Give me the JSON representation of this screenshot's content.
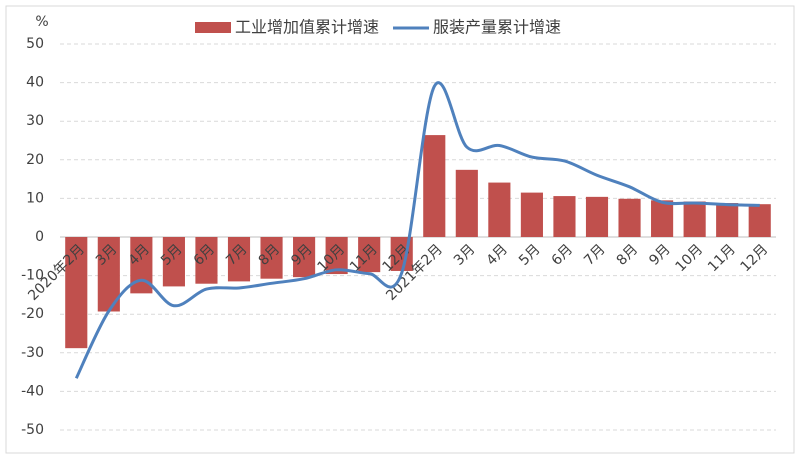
{
  "chart_data": {
    "type": "bar-line",
    "unit": "%",
    "categories": [
      "2020年2月",
      "3月",
      "4月",
      "5月",
      "6月",
      "7月",
      "8月",
      "9月",
      "10月",
      "11月",
      "12月",
      "2021年2月",
      "3月",
      "4月",
      "5月",
      "6月",
      "7月",
      "8月",
      "9月",
      "10月",
      "11月",
      "12月"
    ],
    "series": [
      {
        "name": "工业增加值累计增速",
        "type": "bar",
        "color": "#c0504d",
        "values": [
          -28.8,
          -19.3,
          -14.6,
          -12.8,
          -12.1,
          -11.5,
          -10.8,
          -10.4,
          -9.6,
          -9.1,
          -8.8,
          26.4,
          17.4,
          14.1,
          11.5,
          10.6,
          10.4,
          9.9,
          9.5,
          9.2,
          8.8,
          8.5
        ]
      },
      {
        "name": "服装产量累计增速",
        "type": "line",
        "color": "#4f81bd",
        "values": [
          -36.6,
          -19.2,
          -11.2,
          -17.8,
          -13.5,
          -13.2,
          -12.0,
          -10.8,
          -8.5,
          -9.5,
          -9.3,
          39.0,
          23.3,
          23.7,
          20.7,
          19.7,
          16.0,
          13.0,
          9.0,
          8.8,
          8.4,
          8.2
        ]
      }
    ],
    "ylim": [
      -50,
      50
    ],
    "yticks": [
      -50,
      -40,
      -30,
      -20,
      -10,
      0,
      10,
      20,
      30,
      40,
      50
    ],
    "grid": true
  }
}
